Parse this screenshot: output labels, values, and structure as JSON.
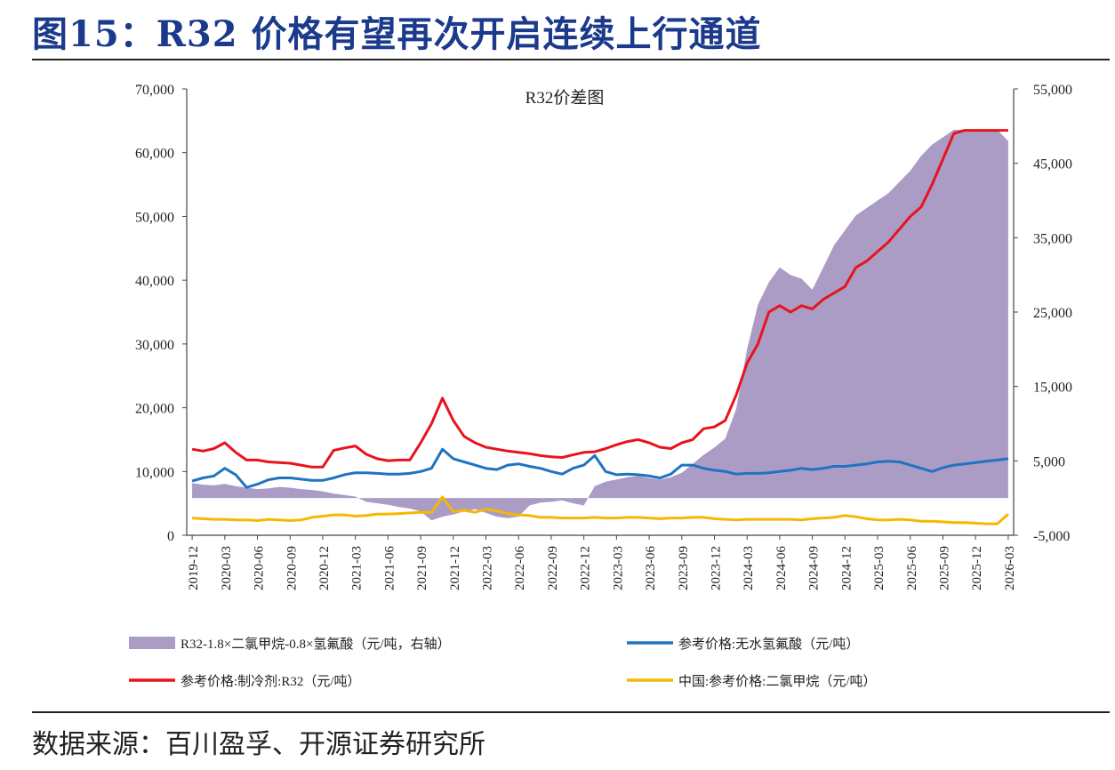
{
  "title": "图15：R32 价格有望再次开启连续上行通道",
  "source": "数据来源：百川盈孚、开源证券研究所",
  "chart_data": {
    "type": "line",
    "title": "R32价差图",
    "grid": false,
    "legend_position": "bottom",
    "x": [
      "2019-12",
      "2020-01",
      "2020-02",
      "2020-03",
      "2020-04",
      "2020-05",
      "2020-06",
      "2020-07",
      "2020-08",
      "2020-09",
      "2020-10",
      "2020-11",
      "2020-12",
      "2021-01",
      "2021-02",
      "2021-03",
      "2021-04",
      "2021-05",
      "2021-06",
      "2021-07",
      "2021-08",
      "2021-09",
      "2021-10",
      "2021-11",
      "2021-12",
      "2022-01",
      "2022-02",
      "2022-03",
      "2022-04",
      "2022-05",
      "2022-06",
      "2022-07",
      "2022-08",
      "2022-09",
      "2022-10",
      "2022-11",
      "2022-12",
      "2023-01",
      "2023-02",
      "2023-03",
      "2023-04",
      "2023-05",
      "2023-06",
      "2023-07",
      "2023-08",
      "2023-09",
      "2023-10",
      "2023-11",
      "2023-12",
      "2024-01",
      "2024-02",
      "2024-03",
      "2024-04",
      "2024-05",
      "2024-06",
      "2024-07",
      "2024-08",
      "2024-09",
      "2024-10",
      "2024-11",
      "2024-12",
      "2025-01",
      "2025-02",
      "2025-03",
      "2025-04",
      "2025-05",
      "2025-06",
      "2025-07",
      "2025-08",
      "2025-09",
      "2025-10",
      "2025-11",
      "2025-12",
      "2026-01",
      "2026-02",
      "2026-03"
    ],
    "x_ticks": [
      "2019-12",
      "2020-03",
      "2020-06",
      "2020-09",
      "2020-12",
      "2021-03",
      "2021-06",
      "2021-09",
      "2021-12",
      "2022-03",
      "2022-06",
      "2022-09",
      "2022-12",
      "2023-03",
      "2023-06",
      "2023-09",
      "2023-12",
      "2024-03",
      "2024-06",
      "2024-09",
      "2024-12",
      "2025-03",
      "2025-06",
      "2025-09",
      "2025-12",
      "2026-03"
    ],
    "y_left": {
      "min": 0,
      "max": 70000,
      "ticks": [
        "0",
        "10,000",
        "20,000",
        "30,000",
        "40,000",
        "50,000",
        "60,000",
        "70,000"
      ]
    },
    "y_right": {
      "min": -5000,
      "max": 55000,
      "ticks": [
        "-5,000",
        "5,000",
        "15,000",
        "25,000",
        "35,000",
        "45,000",
        "55,000"
      ]
    },
    "series": [
      {
        "name": "R32-1.8×二氯甲烷-0.8×氢氟酸（元/吨，右轴）",
        "type": "area",
        "axis": "right",
        "color": "#ab9cc6",
        "values": [
          2000,
          1800,
          1700,
          1900,
          1600,
          1400,
          1200,
          1300,
          1500,
          1400,
          1200,
          1100,
          900,
          600,
          400,
          200,
          -500,
          -700,
          -900,
          -1200,
          -1400,
          -1800,
          -3000,
          -2500,
          -2200,
          -1800,
          -1500,
          -2000,
          -2500,
          -2700,
          -2500,
          -1000,
          -600,
          -500,
          -300,
          -700,
          -1000,
          1600,
          2200,
          2500,
          2800,
          3000,
          2700,
          2500,
          2800,
          3400,
          4600,
          5800,
          6800,
          8000,
          12000,
          20000,
          26000,
          29000,
          31000,
          30000,
          29500,
          28000,
          31000,
          34000,
          36000,
          38000,
          39000,
          40000,
          41000,
          42500,
          44000,
          46000,
          47500,
          48500,
          49500,
          49500,
          49500,
          49500,
          49500,
          48000
        ]
      },
      {
        "name": "参考价格:无水氢氟酸（元/吨）",
        "type": "line",
        "axis": "left",
        "color": "#1f73c0",
        "values": [
          8500,
          9000,
          9300,
          10500,
          9500,
          7500,
          8000,
          8700,
          9000,
          9000,
          8800,
          8600,
          8600,
          9000,
          9500,
          9800,
          9800,
          9700,
          9600,
          9600,
          9700,
          10000,
          10500,
          13500,
          12000,
          11500,
          11000,
          10500,
          10300,
          11000,
          11200,
          10800,
          10500,
          10000,
          9600,
          10500,
          11000,
          12500,
          10000,
          9500,
          9600,
          9500,
          9300,
          9000,
          9600,
          11000,
          11000,
          10500,
          10200,
          10000,
          9600,
          9700,
          9700,
          9800,
          10000,
          10200,
          10500,
          10300,
          10500,
          10800,
          10800,
          11000,
          11200,
          11500,
          11600,
          11500,
          11000,
          10500,
          10000,
          10600,
          11000,
          11200,
          11400,
          11600,
          11800,
          12000
        ]
      },
      {
        "name": "参考价格:制冷剂:R32（元/吨）",
        "type": "line",
        "axis": "left",
        "color": "#e8131d",
        "values": [
          13500,
          13200,
          13600,
          14500,
          13000,
          11800,
          11800,
          11500,
          11400,
          11300,
          11000,
          10700,
          10700,
          13300,
          13700,
          14000,
          12700,
          12000,
          11700,
          11800,
          11800,
          14500,
          17500,
          21500,
          18000,
          15500,
          14500,
          13800,
          13500,
          13200,
          13000,
          12800,
          12500,
          12300,
          12200,
          12600,
          13000,
          13100,
          13600,
          14200,
          14700,
          15000,
          14500,
          13800,
          13600,
          14500,
          15000,
          16700,
          17000,
          18000,
          22000,
          27000,
          30000,
          35000,
          36000,
          35000,
          36000,
          35500,
          37000,
          38000,
          39000,
          42000,
          43000,
          44500,
          46000,
          48000,
          50000,
          51500,
          55000,
          59000,
          63000,
          63500,
          63500,
          63500,
          63500,
          63500
        ]
      },
      {
        "name": "中国:参考价格:二氯甲烷（元/吨）",
        "type": "line",
        "axis": "left",
        "color": "#f5b800",
        "values": [
          2700,
          2600,
          2500,
          2500,
          2400,
          2400,
          2300,
          2500,
          2400,
          2300,
          2400,
          2800,
          3000,
          3200,
          3200,
          3000,
          3100,
          3300,
          3300,
          3400,
          3500,
          3600,
          3600,
          6000,
          3700,
          3900,
          3600,
          4100,
          3800,
          3400,
          3200,
          3100,
          2800,
          2800,
          2700,
          2700,
          2700,
          2800,
          2700,
          2700,
          2800,
          2800,
          2700,
          2600,
          2700,
          2700,
          2800,
          2800,
          2600,
          2500,
          2400,
          2500,
          2500,
          2500,
          2500,
          2500,
          2400,
          2600,
          2700,
          2800,
          3100,
          2900,
          2600,
          2400,
          2400,
          2500,
          2400,
          2200,
          2200,
          2100,
          2000,
          2000,
          1900,
          1800,
          1800,
          3300
        ]
      }
    ]
  }
}
